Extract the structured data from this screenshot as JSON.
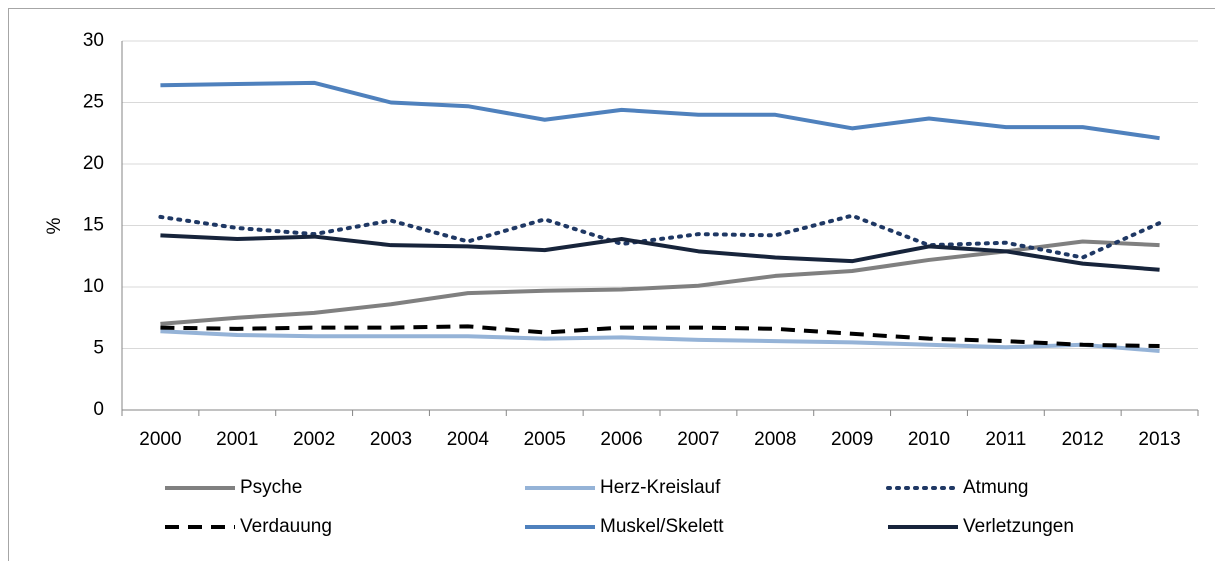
{
  "chart_data": {
    "type": "line",
    "y_label": "%",
    "categories": [
      "2000",
      "2001",
      "2002",
      "2003",
      "2004",
      "2005",
      "2006",
      "2007",
      "2008",
      "2009",
      "2010",
      "2011",
      "2012",
      "2013"
    ],
    "series": [
      {
        "name": "Psyche",
        "color": "#808080",
        "dash": "solid",
        "values": [
          7.0,
          7.5,
          7.9,
          8.6,
          9.5,
          9.7,
          9.8,
          10.1,
          10.9,
          11.3,
          12.2,
          12.9,
          13.7,
          13.4
        ]
      },
      {
        "name": "Herz-Kreislauf",
        "color": "#95b3d7",
        "dash": "solid",
        "values": [
          6.4,
          6.1,
          6.0,
          6.0,
          6.0,
          5.8,
          5.9,
          5.7,
          5.6,
          5.5,
          5.3,
          5.1,
          5.3,
          4.8
        ]
      },
      {
        "name": "Atmung",
        "color": "#1f3864",
        "dash": "dotted",
        "values": [
          15.7,
          14.8,
          14.3,
          15.4,
          13.7,
          15.5,
          13.5,
          14.3,
          14.2,
          15.8,
          13.4,
          13.6,
          12.4,
          15.2
        ]
      },
      {
        "name": "Verdauung",
        "color": "#000000",
        "dash": "dashed",
        "values": [
          6.7,
          6.6,
          6.7,
          6.7,
          6.8,
          6.3,
          6.7,
          6.7,
          6.6,
          6.2,
          5.8,
          5.6,
          5.3,
          5.2
        ]
      },
      {
        "name": "Muskel/Skelett",
        "color": "#4f81bd",
        "dash": "solid",
        "values": [
          26.4,
          26.5,
          26.6,
          25.0,
          24.7,
          23.6,
          24.4,
          24.0,
          24.0,
          22.9,
          23.7,
          23.0,
          23.0,
          22.1
        ]
      },
      {
        "name": "Verletzungen",
        "color": "#17243b",
        "dash": "solid",
        "values": [
          14.2,
          13.9,
          14.1,
          13.4,
          13.3,
          13.0,
          13.9,
          12.9,
          12.4,
          12.1,
          13.3,
          12.9,
          11.9,
          11.4
        ]
      }
    ],
    "ylim": [
      0,
      30
    ],
    "yticks": [
      0,
      5,
      10,
      15,
      20,
      25,
      30
    ],
    "grid": true,
    "legend": "bottom"
  }
}
